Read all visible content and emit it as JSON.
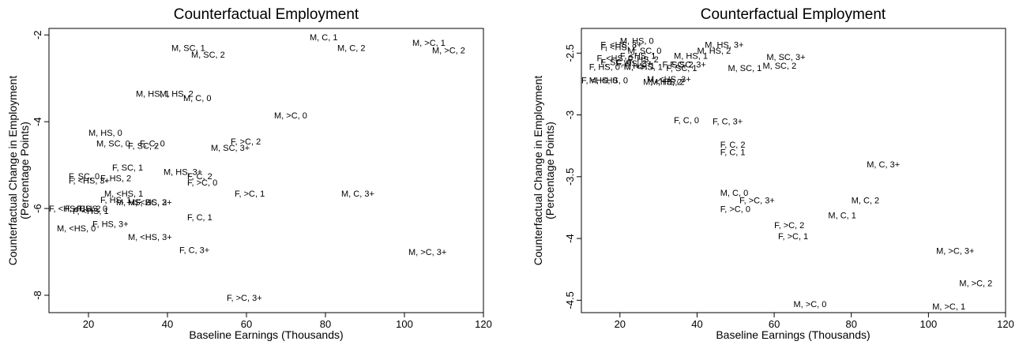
{
  "chart_data": [
    {
      "type": "scatter",
      "title": "Counterfactual Employment",
      "xlabel": "Baseline Earnings (Thousands)",
      "ylabel": [
        "Counterfactual Change in Employment",
        "(Percentage Points)"
      ],
      "xlim": [
        10,
        120
      ],
      "ylim": [
        -8.4,
        -1.85
      ],
      "xticks": [
        "20",
        "40",
        "60",
        "80",
        "100",
        "120"
      ],
      "yticks": [
        "-2",
        "-4",
        "-6",
        "-8"
      ],
      "grid": false,
      "points": [
        {
          "label": "M, C, 1",
          "x": 76,
          "y": -2.05
        },
        {
          "label": "M, >C, 1",
          "x": 102,
          "y": -2.18
        },
        {
          "label": "M, SC, 1",
          "x": 41,
          "y": -2.3
        },
        {
          "label": "M, C, 2",
          "x": 83,
          "y": -2.3
        },
        {
          "label": "M, >C, 2",
          "x": 107,
          "y": -2.35
        },
        {
          "label": "M, SC, 2",
          "x": 46,
          "y": -2.45
        },
        {
          "label": "M, HS, 1",
          "x": 32,
          "y": -3.35
        },
        {
          "label": "M, HS, 2",
          "x": 38,
          "y": -3.35
        },
        {
          "label": "M, C, 0",
          "x": 44,
          "y": -3.45
        },
        {
          "label": "M, >C, 0",
          "x": 67,
          "y": -3.85
        },
        {
          "label": "M, HS, 0",
          "x": 20,
          "y": -4.25
        },
        {
          "label": "F, >C, 2",
          "x": 56,
          "y": -4.45
        },
        {
          "label": "M, SC, 0",
          "x": 22,
          "y": -4.5
        },
        {
          "label": "F, C, 0",
          "x": 33,
          "y": -4.5
        },
        {
          "label": "F, SC, 2",
          "x": 30,
          "y": -4.55
        },
        {
          "label": "M, SC, 3+",
          "x": 51,
          "y": -4.6
        },
        {
          "label": "F, SC, 1",
          "x": 26,
          "y": -5.05
        },
        {
          "label": "M, HS, 3+",
          "x": 39,
          "y": -5.15
        },
        {
          "label": "F, C, 2",
          "x": 45,
          "y": -5.25
        },
        {
          "label": "F, SC, 0",
          "x": 15,
          "y": -5.25
        },
        {
          "label": "F, HS, 2",
          "x": 23,
          "y": -5.3
        },
        {
          "label": "F, <HS, 3+",
          "x": 15,
          "y": -5.35
        },
        {
          "label": "F, >C, 0",
          "x": 45,
          "y": -5.4
        },
        {
          "label": "M, <HS, 1",
          "x": 24,
          "y": -5.65
        },
        {
          "label": "F, >C, 1",
          "x": 57,
          "y": -5.65
        },
        {
          "label": "M, C, 3+",
          "x": 84,
          "y": -5.65
        },
        {
          "label": "F, HS, 1",
          "x": 23,
          "y": -5.8
        },
        {
          "label": "M, HS, 2",
          "x": 27,
          "y": -5.85
        },
        {
          "label": "F, SC, 3+",
          "x": 32,
          "y": -5.85
        },
        {
          "label": "M, <HS, 2",
          "x": 30,
          "y": -5.85
        },
        {
          "label": "F, <HS, 0",
          "x": 10,
          "y": -6.0
        },
        {
          "label": "F, <HS, 2",
          "x": 14,
          "y": -6.0
        },
        {
          "label": "F, HS, 0",
          "x": 17,
          "y": -6.0
        },
        {
          "label": "F, <HS, 1",
          "x": 16,
          "y": -6.05
        },
        {
          "label": "F, C, 1",
          "x": 45,
          "y": -6.2
        },
        {
          "label": "F, HS, 3+",
          "x": 21,
          "y": -6.35
        },
        {
          "label": "M, <HS, 0",
          "x": 12,
          "y": -6.45
        },
        {
          "label": "M, <HS, 3+",
          "x": 30,
          "y": -6.65
        },
        {
          "label": "F, C, 3+",
          "x": 43,
          "y": -6.95
        },
        {
          "label": "M, >C, 3+",
          "x": 101,
          "y": -7.0
        },
        {
          "label": "F, >C, 3+",
          "x": 55,
          "y": -8.05
        }
      ]
    },
    {
      "type": "scatter",
      "title": "Counterfactual Employment",
      "xlabel": "Baseline Earnings (Thousands)",
      "ylabel": [
        "Counterfactual Change in Employment",
        "(Percentage Points)"
      ],
      "xlim": [
        10,
        120
      ],
      "ylim": [
        -4.6,
        -2.3
      ],
      "xticks": [
        "20",
        "40",
        "60",
        "80",
        "100",
        "120"
      ],
      "yticks": [
        "-2.5",
        "-3",
        "-3.5",
        "-4",
        "-4.5"
      ],
      "grid": false,
      "points": [
        {
          "label": "M, HS, 0",
          "x": 20,
          "y": -2.4
        },
        {
          "label": "F, <HS, 3+",
          "x": 15,
          "y": -2.43
        },
        {
          "label": "M, HS, 3+",
          "x": 42,
          "y": -2.43
        },
        {
          "label": "F, <HS, 2",
          "x": 15,
          "y": -2.45
        },
        {
          "label": "M, SC, 0",
          "x": 22,
          "y": -2.48
        },
        {
          "label": "M, HS, 2",
          "x": 40,
          "y": -2.48
        },
        {
          "label": "F, <HS, 1",
          "x": 20,
          "y": -2.52
        },
        {
          "label": "M, HS, 1",
          "x": 34,
          "y": -2.52
        },
        {
          "label": "M, SC, 3+",
          "x": 58,
          "y": -2.53
        },
        {
          "label": "F, <HS, 0",
          "x": 14,
          "y": -2.54
        },
        {
          "label": "F, HS, 2",
          "x": 22,
          "y": -2.55
        },
        {
          "label": "F, SC, 0",
          "x": 15,
          "y": -2.57
        },
        {
          "label": "F, HS, 3+",
          "x": 19,
          "y": -2.58
        },
        {
          "label": "F, SC, 2",
          "x": 31,
          "y": -2.59
        },
        {
          "label": "F, SC, 3+",
          "x": 33,
          "y": -2.59
        },
        {
          "label": "F, HS, 1",
          "x": 21,
          "y": -2.6
        },
        {
          "label": "M, SC, 2",
          "x": 57,
          "y": -2.6
        },
        {
          "label": "F, HS, 0",
          "x": 12,
          "y": -2.61
        },
        {
          "label": "M, <HS, 1",
          "x": 21,
          "y": -2.61
        },
        {
          "label": "M, SC, 1",
          "x": 48,
          "y": -2.62
        },
        {
          "label": "F, SC, 1",
          "x": 32,
          "y": -2.62
        },
        {
          "label": "M, <HS, 3+",
          "x": 27,
          "y": -2.71
        },
        {
          "label": "F, <HS, 0",
          "x": 10,
          "y": -2.72
        },
        {
          "label": "M, <HS, 0",
          "x": 12,
          "y": -2.72
        },
        {
          "label": "M, HS, 2",
          "x": 28,
          "y": -2.73
        },
        {
          "label": "M, <HS, 2",
          "x": 26,
          "y": -2.73
        },
        {
          "label": "F, C, 0",
          "x": 34,
          "y": -3.04
        },
        {
          "label": "F, C, 3+",
          "x": 44,
          "y": -3.05
        },
        {
          "label": "F, C, 2",
          "x": 46,
          "y": -3.24
        },
        {
          "label": "F, C, 1",
          "x": 46,
          "y": -3.3
        },
        {
          "label": "M, C, 3+",
          "x": 84,
          "y": -3.4
        },
        {
          "label": "M, C, 0",
          "x": 46,
          "y": -3.63
        },
        {
          "label": "F, >C, 3+",
          "x": 51,
          "y": -3.69
        },
        {
          "label": "M, C, 2",
          "x": 80,
          "y": -3.69
        },
        {
          "label": "F, >C, 0",
          "x": 46,
          "y": -3.76
        },
        {
          "label": "M, C, 1",
          "x": 74,
          "y": -3.81
        },
        {
          "label": "F, >C, 2",
          "x": 60,
          "y": -3.89
        },
        {
          "label": "F, >C, 1",
          "x": 61,
          "y": -3.98
        },
        {
          "label": "M, >C, 3+",
          "x": 102,
          "y": -4.1
        },
        {
          "label": "M, >C, 2",
          "x": 108,
          "y": -4.36
        },
        {
          "label": "M, >C, 0",
          "x": 65,
          "y": -4.53
        },
        {
          "label": "M, >C, 1",
          "x": 101,
          "y": -4.55
        }
      ]
    }
  ]
}
